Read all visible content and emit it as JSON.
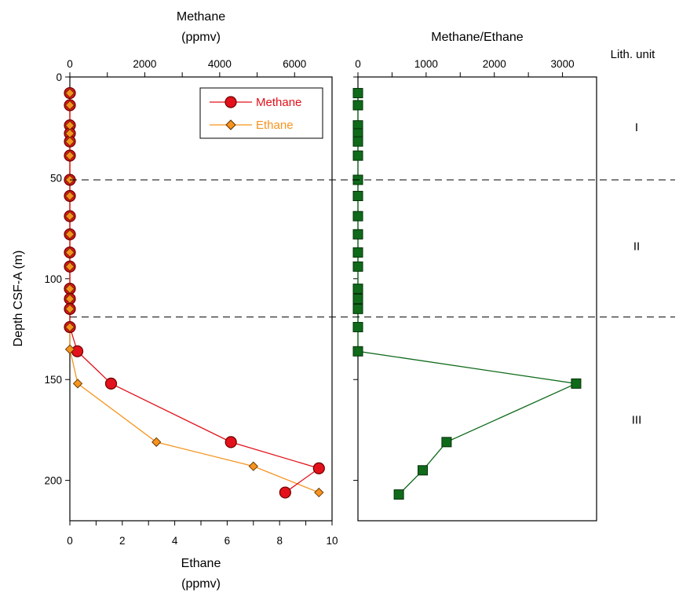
{
  "colors": {
    "methane": "#e3111b",
    "methane_edge": "#6b0000",
    "ethane": "#f7931e",
    "ratio": "#0f6a1a",
    "ratio_edge": "#053008"
  },
  "chart_data": [
    {
      "type": "line",
      "title": "",
      "ylabel": "Depth CSF-A (m)",
      "ylim": [
        0,
        220
      ],
      "y_inverted": true,
      "yticks": [
        0,
        50,
        100,
        150,
        200
      ],
      "top_axis": {
        "label_line1": "Methane",
        "label_line2": "(ppmv)",
        "lim": [
          0,
          7000
        ],
        "ticks": [
          0,
          2000,
          4000,
          6000
        ]
      },
      "bottom_axis": {
        "label_line1": "Ethane",
        "label_line2": "(ppmv)",
        "lim": [
          0,
          10
        ],
        "ticks": [
          0,
          2,
          4,
          6,
          8,
          10
        ]
      },
      "legend": {
        "position": "top-right",
        "entries": [
          "Methane",
          "Ethane"
        ]
      },
      "series": [
        {
          "name": "Methane",
          "axis": "top",
          "marker": "circle",
          "points": [
            [
              0,
              8
            ],
            [
              0,
              14
            ],
            [
              0,
              24
            ],
            [
              0,
              28
            ],
            [
              0,
              32
            ],
            [
              0,
              39
            ],
            [
              0,
              51
            ],
            [
              0,
              59
            ],
            [
              0,
              69
            ],
            [
              0,
              78
            ],
            [
              0,
              87
            ],
            [
              0,
              94
            ],
            [
              0,
              105
            ],
            [
              0,
              110
            ],
            [
              0,
              115
            ],
            [
              0,
              124
            ],
            [
              200,
              136
            ],
            [
              1100,
              152
            ],
            [
              4300,
              181
            ],
            [
              6650,
              194
            ],
            [
              5750,
              206
            ]
          ]
        },
        {
          "name": "Ethane",
          "axis": "bottom",
          "marker": "diamond",
          "points": [
            [
              0,
              8
            ],
            [
              0,
              14
            ],
            [
              0,
              24
            ],
            [
              0,
              28
            ],
            [
              0,
              32
            ],
            [
              0,
              39
            ],
            [
              0,
              51
            ],
            [
              0,
              59
            ],
            [
              0,
              69
            ],
            [
              0,
              78
            ],
            [
              0,
              87
            ],
            [
              0,
              94
            ],
            [
              0,
              105
            ],
            [
              0,
              110
            ],
            [
              0,
              115
            ],
            [
              0,
              124
            ],
            [
              0,
              135
            ],
            [
              0.3,
              152
            ],
            [
              3.3,
              181
            ],
            [
              7.0,
              193
            ],
            [
              9.5,
              206
            ]
          ]
        }
      ]
    },
    {
      "type": "line",
      "title": "",
      "top_axis": {
        "label_line1": "Methane/Ethane",
        "lim": [
          0,
          3500
        ],
        "ticks": [
          0,
          1000,
          2000,
          3000
        ]
      },
      "ylim": [
        0,
        220
      ],
      "y_inverted": true,
      "series": [
        {
          "marker": "square",
          "points": [
            [
              0,
              8
            ],
            [
              0,
              14
            ],
            [
              0,
              24
            ],
            [
              0,
              28
            ],
            [
              0,
              32
            ],
            [
              0,
              39
            ],
            [
              0,
              51
            ],
            [
              0,
              59
            ],
            [
              0,
              69
            ],
            [
              0,
              78
            ],
            [
              0,
              87
            ],
            [
              0,
              94
            ],
            [
              0,
              105
            ],
            [
              0,
              110
            ],
            [
              0,
              115
            ],
            [
              0,
              124
            ],
            [
              0,
              136
            ],
            [
              3200,
              152
            ],
            [
              1300,
              181
            ],
            [
              950,
              195
            ],
            [
              600,
              207
            ]
          ]
        }
      ]
    }
  ],
  "lith_units": {
    "header": "Lith. unit",
    "boundaries": [
      51,
      119
    ],
    "units": [
      {
        "label": "I",
        "depth": 25
      },
      {
        "label": "II",
        "depth": 84
      },
      {
        "label": "III",
        "depth": 170
      }
    ]
  }
}
